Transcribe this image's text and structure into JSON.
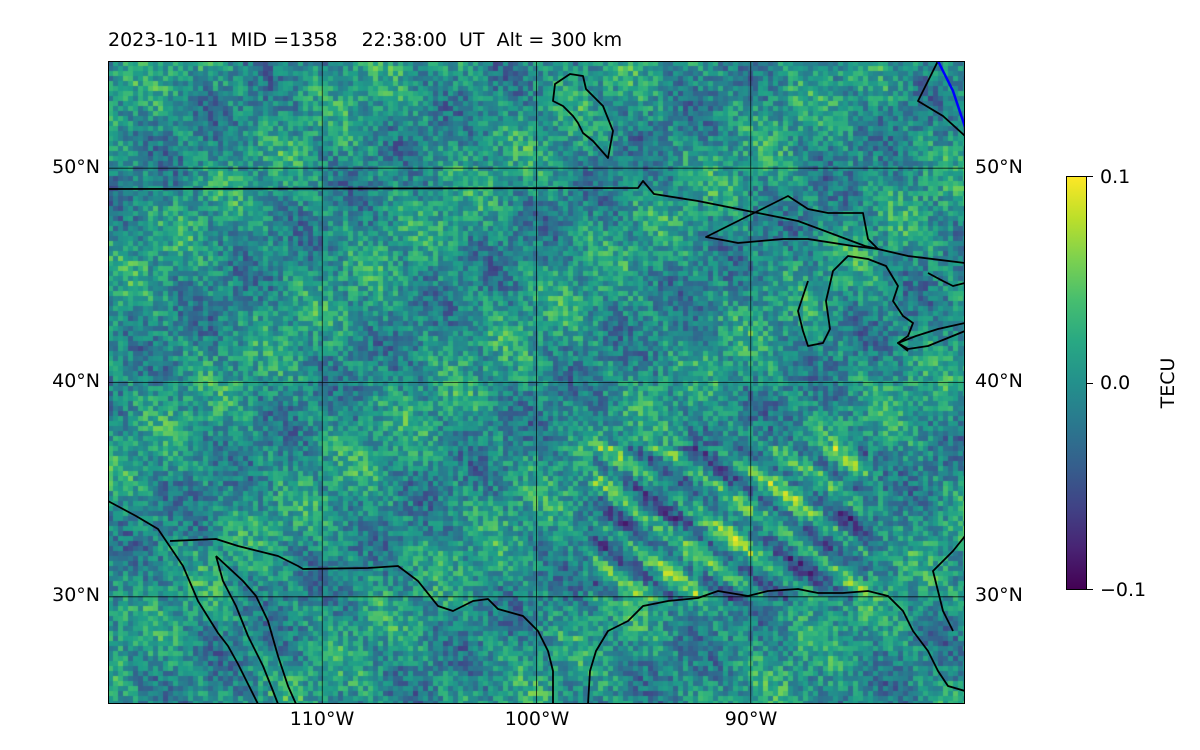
{
  "title": "2023-10-11  MID =1358    22:38:00  UT  Alt = 300 km",
  "map": {
    "type": "heatmap",
    "region_lon": [
      -120,
      -80
    ],
    "region_lat": [
      25,
      55
    ],
    "lat_ticks": [
      {
        "value": 50,
        "label": "50°N"
      },
      {
        "value": 40,
        "label": "40°N"
      },
      {
        "value": 30,
        "label": "30°N"
      }
    ],
    "lon_ticks": [
      {
        "value": -110,
        "label": "110°W"
      },
      {
        "value": -100,
        "label": "100°W"
      },
      {
        "value": -90,
        "label": "90°W"
      }
    ],
    "grid": true,
    "colormap": "viridis",
    "colors": {
      "coastline": "#000000",
      "highlight_line": "#0000ff",
      "gridline": "#000000"
    },
    "features": [
      "coastlines",
      "great-lakes",
      "canada-us-border",
      "gulf-of-mexico"
    ]
  },
  "colorbar": {
    "label": "TECU",
    "min": -0.1,
    "max": 0.1,
    "ticks": [
      {
        "value": 0.1,
        "label": "0.1"
      },
      {
        "value": 0.0,
        "label": "0.0"
      },
      {
        "value": -0.1,
        "label": "−0.1"
      }
    ]
  }
}
